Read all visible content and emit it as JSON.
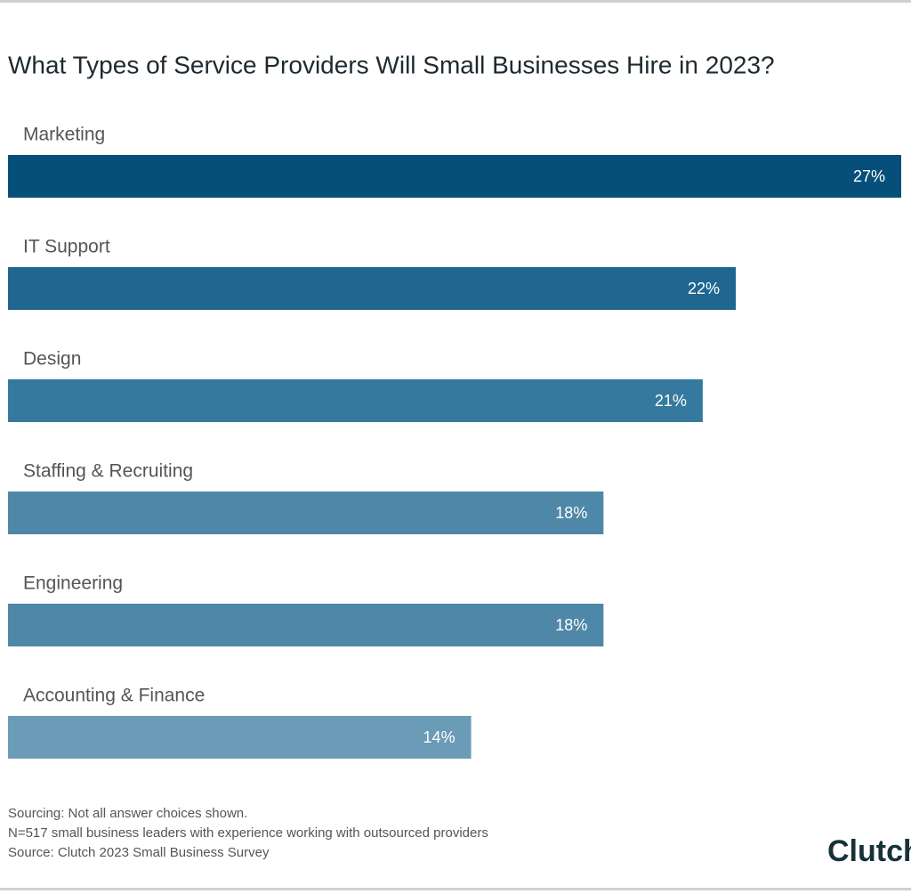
{
  "chart_data": {
    "type": "hbar",
    "title": "What Types of Service Providers Will Small Businesses Hire in 2023?",
    "categories": [
      "Marketing",
      "IT Support",
      "Design",
      "Staffing & Recruiting",
      "Engineering",
      "Accounting & Finance"
    ],
    "values": [
      27,
      22,
      21,
      18,
      18,
      14
    ],
    "value_labels": [
      "27%",
      "22%",
      "21%",
      "18%",
      "18%",
      "14%"
    ],
    "colors": [
      "#064f7a",
      "#1f6690",
      "#357a9e",
      "#4f87a8",
      "#4f87a8",
      "#6a9bb7"
    ],
    "notes": [
      "Sourcing: Not all answer choices shown.",
      "N=517 small business leaders with experience working with outsourced providers",
      "Source: Clutch 2023 Small Business Survey"
    ],
    "logo": "Clutch"
  }
}
